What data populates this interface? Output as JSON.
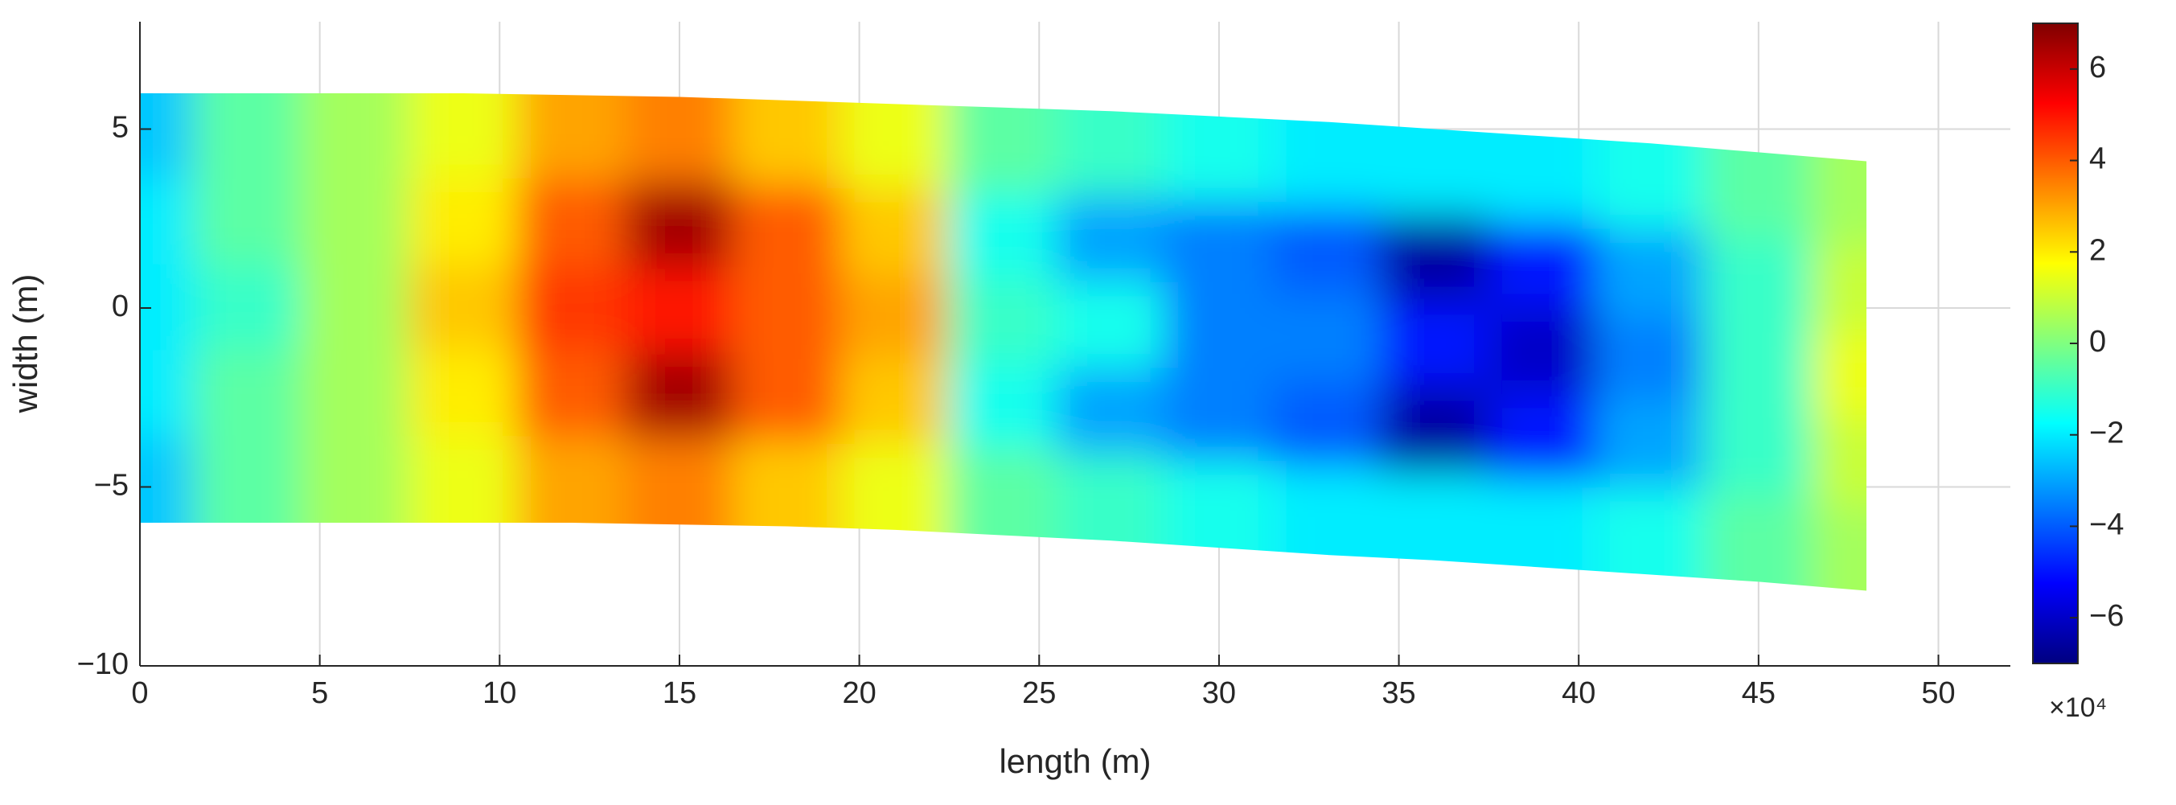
{
  "chart_data": {
    "type": "contour",
    "x_label": "length (m)",
    "y_label": "width (m)",
    "x": [
      0,
      3,
      6,
      9,
      12,
      15,
      18,
      21,
      24,
      27,
      30,
      33,
      36,
      39,
      42,
      45,
      48
    ],
    "y_top": [
      6,
      6,
      6,
      6,
      5.95,
      5.9,
      5.8,
      5.7,
      5.6,
      5.5,
      5.35,
      5.2,
      5.0,
      4.8,
      4.6,
      4.35,
      4.1
    ],
    "y_bottom": [
      -6,
      -6,
      -6,
      -6,
      -6,
      -6.05,
      -6.1,
      -6.2,
      -6.35,
      -6.5,
      -6.7,
      -6.9,
      -7.05,
      -7.25,
      -7.45,
      -7.65,
      -7.9
    ],
    "values": [
      [
        -2.5,
        -0.5,
        0.5,
        1.5,
        3,
        3.5,
        2.5,
        1.5,
        -0.5,
        -1,
        -1.5,
        -2,
        -2,
        -2,
        -1.5,
        -0.5,
        0.5
      ],
      [
        -2,
        -0.5,
        0.5,
        2,
        4,
        6.5,
        4,
        2.5,
        -1.5,
        -3,
        -3.5,
        -4,
        -6.5,
        -5,
        -3,
        -1,
        1
      ],
      [
        -2,
        -1,
        0.5,
        2.5,
        4.5,
        5,
        4,
        3,
        -1,
        -1.5,
        -3.5,
        -3.5,
        -5,
        -6,
        -3.5,
        -1,
        1.5
      ],
      [
        -2,
        -0.5,
        0.5,
        2,
        4,
        6.5,
        4,
        2.5,
        -1.5,
        -3,
        -3.5,
        -4,
        -6.5,
        -5,
        -3,
        -1,
        1
      ],
      [
        -2.5,
        -0.5,
        0.5,
        1.5,
        3,
        3.5,
        2.5,
        1.5,
        -0.5,
        -1,
        -1.5,
        -2,
        -2,
        -2,
        -1.5,
        -0.5,
        0.5
      ]
    ],
    "xlim": [
      0,
      52
    ],
    "ylim": [
      -10,
      8
    ],
    "xticks": [
      0,
      5,
      10,
      15,
      20,
      25,
      30,
      35,
      40,
      45,
      50
    ],
    "yticks": [
      {
        "value": -10,
        "label": "−10"
      },
      {
        "value": -5,
        "label": "−5"
      },
      0,
      5
    ],
    "grid": true,
    "colormap": "jet",
    "clim": [
      -7,
      7
    ],
    "colorbar_ticks": [
      {
        "value": -6,
        "label": "−6"
      },
      {
        "value": -4,
        "label": "−4"
      },
      {
        "value": -2,
        "label": "−2"
      },
      0,
      2,
      4,
      6
    ],
    "colorbar_scale": "×10⁴"
  }
}
